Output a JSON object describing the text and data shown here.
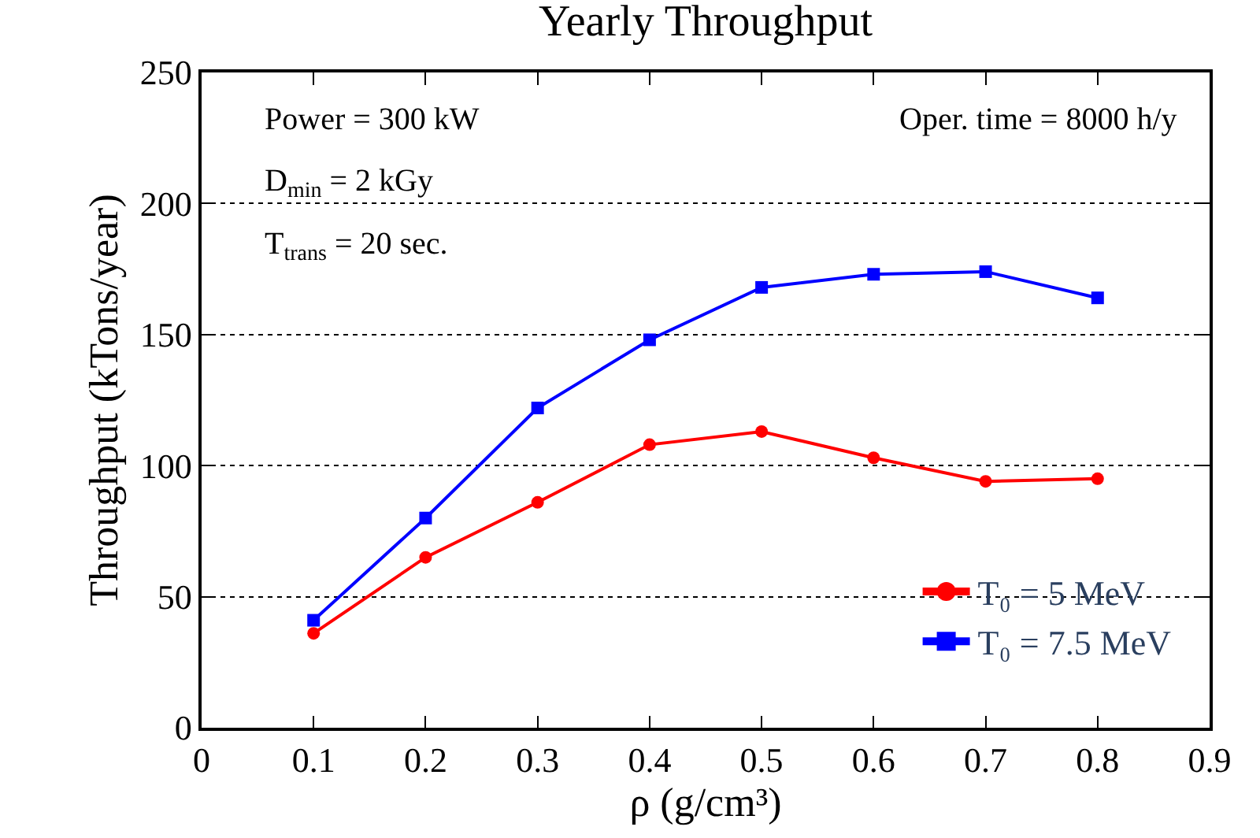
{
  "chart_data": {
    "type": "line",
    "title": "Yearly Throughput",
    "xlabel": "ρ (g/cm³)",
    "ylabel": "Throughput (kTons/year)",
    "x": [
      0.1,
      0.2,
      0.3,
      0.4,
      0.5,
      0.6,
      0.7,
      0.8
    ],
    "series": [
      {
        "name": "T₀ = 5 MeV",
        "color": "#ff0000",
        "marker": "circle",
        "values": [
          36,
          65,
          86,
          108,
          113,
          103,
          94,
          95
        ]
      },
      {
        "name": "T₀ = 7.5 MeV",
        "color": "#0000ff",
        "marker": "square",
        "values": [
          41,
          80,
          122,
          148,
          168,
          173,
          174,
          164
        ]
      }
    ],
    "xlim": [
      0,
      0.9
    ],
    "xticks": [
      0,
      0.1,
      0.2,
      0.3,
      0.4,
      0.5,
      0.6,
      0.7,
      0.8,
      0.9
    ],
    "ylim": [
      0,
      250
    ],
    "yticks": [
      0,
      50,
      100,
      150,
      200,
      250
    ],
    "grid": "y",
    "legend": "bottom right",
    "annotations": [
      "Power = 300 kW",
      "Oper. time = 8000 h/y",
      "D$_{min}$ = 2 kGy",
      "T$_{trans}$ = 20 sec."
    ]
  }
}
